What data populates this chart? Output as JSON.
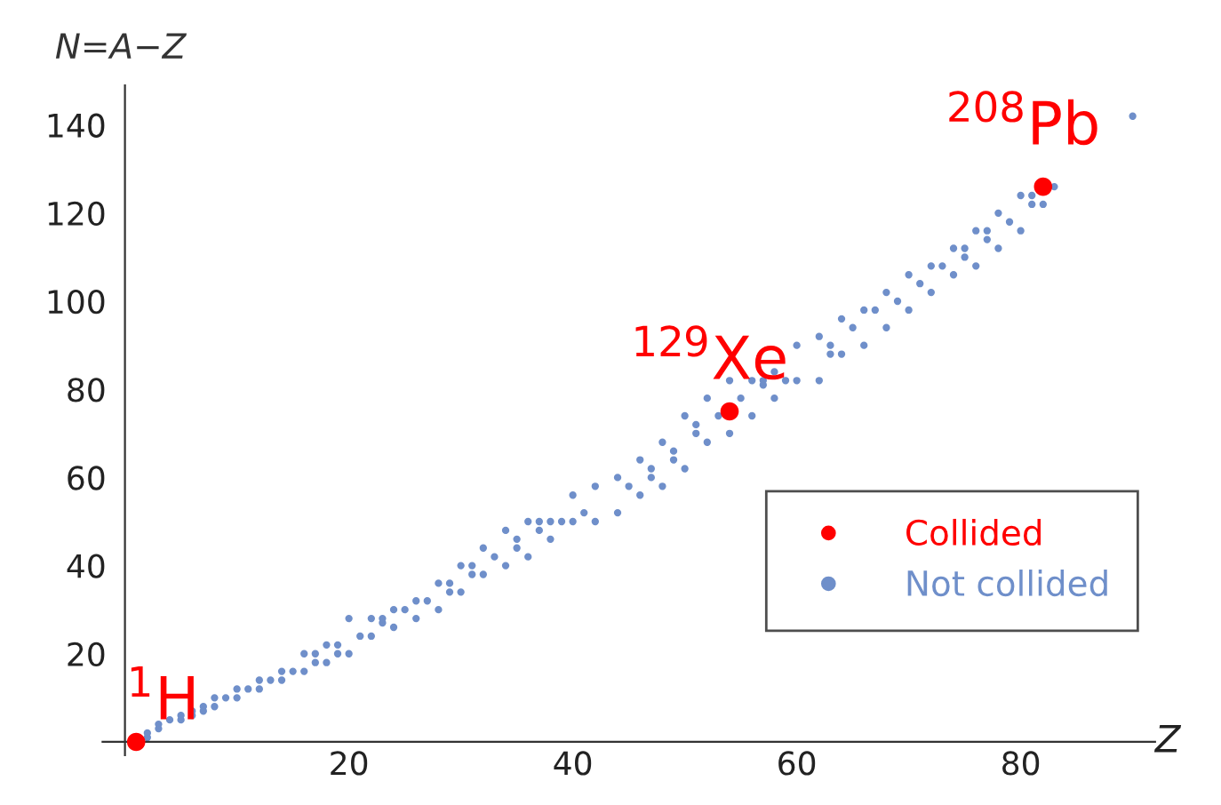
{
  "chart_data": {
    "type": "scatter",
    "xlabel": "Z",
    "ylabel": "N=A−Z",
    "xlim": [
      -2,
      92
    ],
    "ylim": [
      -3,
      149
    ],
    "xticks": [
      20,
      40,
      60,
      80
    ],
    "yticks": [
      20,
      40,
      60,
      80,
      100,
      120,
      140
    ],
    "grid": false,
    "legend": "bottom right",
    "marker": "circle",
    "series": [
      {
        "name": "Collided",
        "color": "#ff0000",
        "x": [
          1,
          54,
          82
        ],
        "values": [
          0,
          75,
          126
        ]
      },
      {
        "name": "Not collided",
        "color": "#6f8fca",
        "x": [
          2,
          2,
          3,
          3,
          4,
          5,
          5,
          6,
          6,
          7,
          7,
          8,
          8,
          9,
          10,
          10,
          11,
          12,
          12,
          13,
          14,
          14,
          15,
          16,
          16,
          17,
          17,
          18,
          18,
          19,
          19,
          20,
          20,
          21,
          22,
          22,
          23,
          23,
          24,
          24,
          25,
          26,
          26,
          27,
          28,
          28,
          29,
          29,
          30,
          30,
          31,
          31,
          32,
          32,
          33,
          34,
          34,
          35,
          35,
          36,
          36,
          37,
          37,
          38,
          38,
          39,
          40,
          40,
          41,
          42,
          42,
          44,
          44,
          45,
          46,
          46,
          47,
          47,
          48,
          48,
          49,
          49,
          50,
          50,
          51,
          51,
          52,
          52,
          53,
          54,
          54,
          55,
          56,
          56,
          57,
          57,
          58,
          58,
          59,
          60,
          60,
          62,
          62,
          63,
          63,
          64,
          64,
          65,
          66,
          66,
          67,
          68,
          68,
          69,
          70,
          70,
          71,
          72,
          72,
          73,
          74,
          74,
          75,
          75,
          76,
          76,
          77,
          77,
          78,
          78,
          79,
          80,
          80,
          81,
          81,
          82,
          83,
          90
        ],
        "values": [
          1,
          2,
          3,
          4,
          5,
          5,
          6,
          6,
          7,
          7,
          8,
          8,
          10,
          10,
          10,
          12,
          12,
          12,
          14,
          14,
          14,
          16,
          16,
          16,
          20,
          18,
          20,
          18,
          22,
          20,
          22,
          20,
          28,
          24,
          24,
          28,
          27,
          28,
          26,
          30,
          30,
          28,
          32,
          32,
          30,
          36,
          34,
          36,
          34,
          40,
          38,
          40,
          38,
          44,
          42,
          40,
          48,
          44,
          46,
          42,
          50,
          48,
          50,
          46,
          50,
          50,
          50,
          56,
          52,
          50,
          58,
          52,
          60,
          58,
          56,
          64,
          60,
          62,
          58,
          68,
          64,
          66,
          62,
          74,
          70,
          72,
          68,
          78,
          74,
          70,
          82,
          78,
          74,
          82,
          81,
          82,
          78,
          84,
          82,
          82,
          90,
          82,
          92,
          88,
          90,
          88,
          96,
          94,
          90,
          98,
          98,
          94,
          102,
          100,
          98,
          106,
          104,
          102,
          108,
          108,
          106,
          112,
          110,
          112,
          108,
          116,
          114,
          116,
          112,
          120,
          118,
          116,
          124,
          122,
          124,
          122,
          126,
          142
        ]
      }
    ],
    "annotations": [
      {
        "text": "$^{1}$H",
        "x": 1,
        "y": 0
      },
      {
        "text": "$^{129}$Xe",
        "x": 54,
        "y": 75
      },
      {
        "text": "$^{208}$Pb",
        "x": 82,
        "y": 126
      }
    ]
  }
}
